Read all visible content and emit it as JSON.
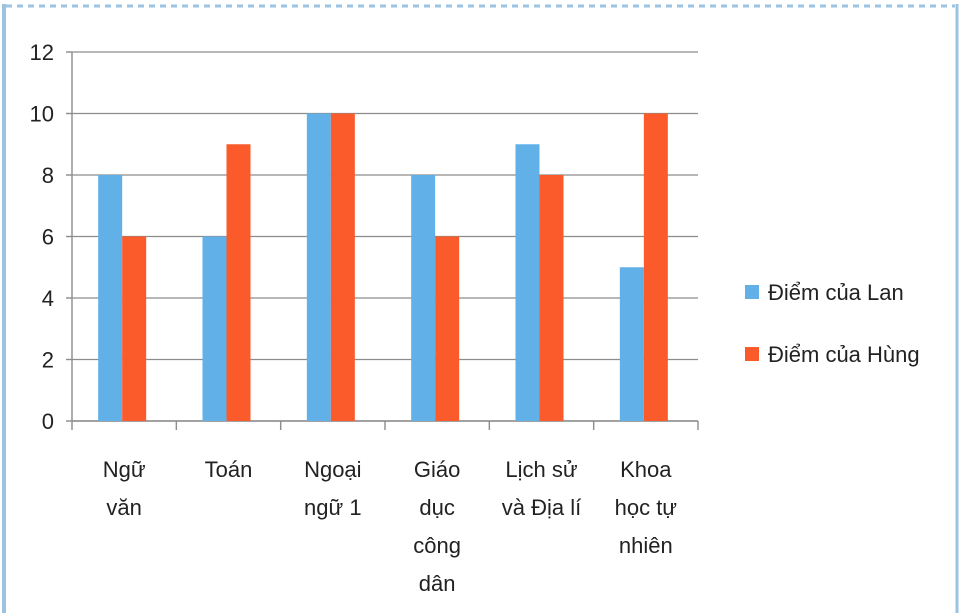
{
  "chart_data": {
    "type": "bar",
    "categories": [
      "Ngữ văn",
      "Toán",
      "Ngoại ngữ 1",
      "Giáo dục công dân",
      "Lịch sử và Địa lí",
      "Khoa học tự nhiên"
    ],
    "series": [
      {
        "name": "Điểm của Lan",
        "color": "#62b0e8",
        "values": [
          8,
          6,
          10,
          8,
          9,
          5
        ]
      },
      {
        "name": "Điểm của Hùng",
        "color": "#fb5a2a",
        "values": [
          6,
          9,
          10,
          6,
          8,
          10
        ]
      }
    ],
    "ylim": [
      0,
      12
    ],
    "yticks": [
      0,
      2,
      4,
      6,
      8,
      10,
      12
    ],
    "grid": true,
    "legend": "right"
  }
}
